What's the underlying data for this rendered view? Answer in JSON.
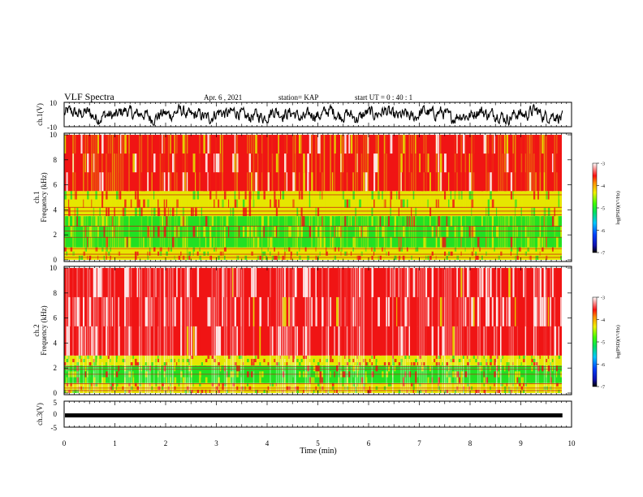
{
  "header": {
    "title": "VLF Spectra",
    "date": "Apr. 6  , 2021",
    "station": "station= KAP",
    "start": "start  UT  =   0  : 40 : 1"
  },
  "colors": {
    "red": "#f01414",
    "white": "#ffffff",
    "yellow": "#e6e600",
    "green": "#22e022",
    "trace": "#000000"
  },
  "chart_data": [
    {
      "type": "line",
      "name": "ch1-waveform",
      "ylabel": "ch.1(V)",
      "ylim": [
        -10,
        10
      ],
      "yticks": [
        "10",
        "-10"
      ],
      "xlim": [
        0,
        10
      ]
    },
    {
      "type": "heatmap",
      "name": "ch1-spectrogram",
      "ylabel": "ch.1\nFrequency  (kHz)",
      "ylim": [
        0,
        10
      ],
      "yticks": [
        "0",
        "2",
        "4",
        "6",
        "8",
        "10"
      ],
      "xlim": [
        0,
        10
      ],
      "bands": [
        {
          "fmin": 0,
          "fmax": 1.0,
          "dominant": "yellow"
        },
        {
          "fmin": 1.0,
          "fmax": 3.5,
          "dominant": "green"
        },
        {
          "fmin": 3.5,
          "fmax": 5.5,
          "dominant": "yellow"
        },
        {
          "fmin": 5.5,
          "fmax": 10,
          "dominant": "red"
        }
      ],
      "colorbar": {
        "label": "log(PSD)(V²/Hz)",
        "ticks": [
          "-3",
          "-4",
          "-5",
          "-6",
          "-7"
        ],
        "range": [
          -7,
          -3
        ]
      }
    },
    {
      "type": "heatmap",
      "name": "ch2-spectrogram",
      "ylabel": "ch.2\nFrequency  (kHz)",
      "ylim": [
        0,
        10
      ],
      "yticks": [
        "0",
        "2",
        "4",
        "6",
        "8",
        "10"
      ],
      "xlim": [
        0,
        10
      ],
      "bands": [
        {
          "fmin": 0,
          "fmax": 0.8,
          "dominant": "yellow"
        },
        {
          "fmin": 0.8,
          "fmax": 2.2,
          "dominant": "green"
        },
        {
          "fmin": 2.2,
          "fmax": 3.0,
          "dominant": "yellow"
        },
        {
          "fmin": 3.0,
          "fmax": 10,
          "dominant": "red-white"
        }
      ],
      "colorbar": {
        "label": "log(PSD)(V²/Hz)",
        "ticks": [
          "-3",
          "-4",
          "-5",
          "-6",
          "-7"
        ],
        "range": [
          -7,
          -3
        ]
      }
    },
    {
      "type": "line",
      "name": "ch3-waveform",
      "ylabel": "ch.3(V)",
      "ylim": [
        -5,
        5
      ],
      "yticks": [
        "5",
        "0",
        "-5"
      ],
      "level": -0.5,
      "xlim": [
        0,
        10
      ]
    }
  ],
  "xaxis": {
    "label": "Time  (min)",
    "ticks": [
      "0",
      "1",
      "2",
      "3",
      "4",
      "5",
      "6",
      "7",
      "8",
      "9",
      "10"
    ],
    "data_end": 9.82
  }
}
